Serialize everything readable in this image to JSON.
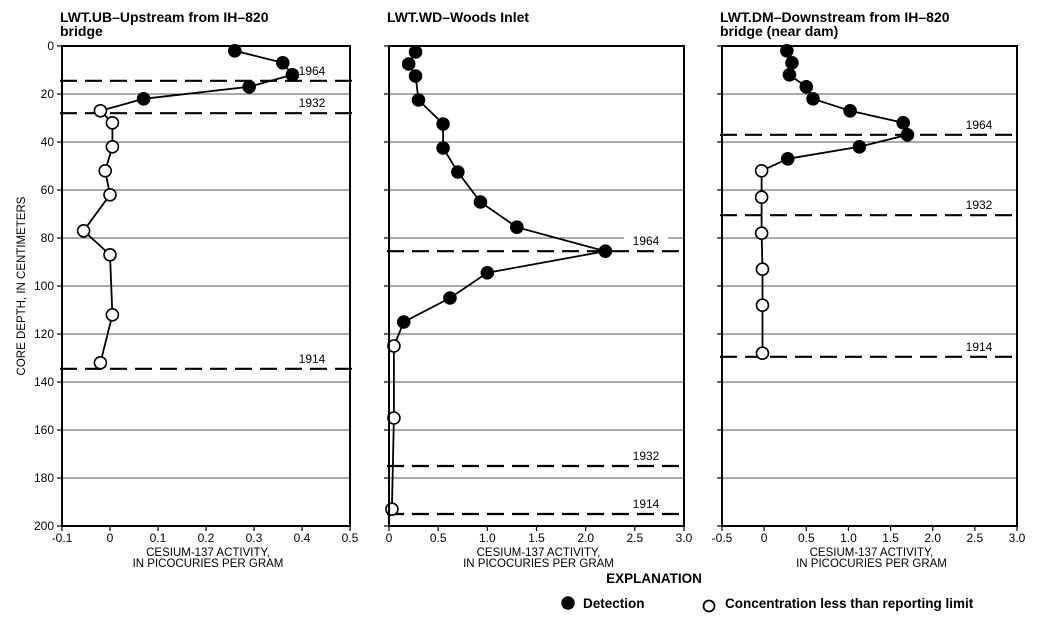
{
  "figure": {
    "ylabel": "CORE DEPTH, IN CENTIMETERS",
    "explanation_title": "EXPLANATION",
    "legend": [
      {
        "marker": "filled",
        "label": "Detection"
      },
      {
        "marker": "open",
        "label": "Concentration less than reporting limit"
      }
    ]
  },
  "chart_data": [
    {
      "type": "line",
      "title_lines": [
        "LWT.UB–Upstream from IH–820",
        "bridge"
      ],
      "xlabel_lines": [
        "CESIUM-137 ACTIVITY,",
        "IN PICOCURIES PER GRAM"
      ],
      "xlim": [
        -0.1,
        0.5
      ],
      "xticks": [
        "-0.1",
        "0",
        "0.1",
        "0.2",
        "0.3",
        "0.4",
        "0.5"
      ],
      "xtick_values": [
        -0.1,
        0,
        0.1,
        0.2,
        0.3,
        0.4,
        0.5
      ],
      "ylim": [
        0,
        200
      ],
      "y_inverted": true,
      "yticks": [
        0,
        20,
        40,
        60,
        80,
        100,
        120,
        140,
        160,
        180,
        200
      ],
      "points": [
        {
          "x": 0.26,
          "y": 2,
          "detected": true
        },
        {
          "x": 0.36,
          "y": 7,
          "detected": true
        },
        {
          "x": 0.38,
          "y": 12,
          "detected": true
        },
        {
          "x": 0.29,
          "y": 17,
          "detected": true
        },
        {
          "x": 0.07,
          "y": 22,
          "detected": true
        },
        {
          "x": -0.02,
          "y": 27,
          "detected": false
        },
        {
          "x": 0.005,
          "y": 32,
          "detected": false
        },
        {
          "x": 0.005,
          "y": 42,
          "detected": false
        },
        {
          "x": -0.01,
          "y": 52,
          "detected": false
        },
        {
          "x": 0.0,
          "y": 62,
          "detected": false
        },
        {
          "x": -0.055,
          "y": 77,
          "detected": false
        },
        {
          "x": 0.0,
          "y": 87,
          "detected": false
        },
        {
          "x": 0.005,
          "y": 112,
          "detected": false
        },
        {
          "x": -0.02,
          "y": 132,
          "detected": false
        }
      ],
      "year_markers": [
        {
          "label": "1964",
          "depth": 14.5
        },
        {
          "label": "1932",
          "depth": 28
        },
        {
          "label": "1914",
          "depth": 134.5
        }
      ]
    },
    {
      "type": "line",
      "title_lines": [
        "LWT.WD–Woods Inlet"
      ],
      "xlabel_lines": [
        "CESIUM-137 ACTIVITY,",
        "IN PICOCURIES PER GRAM"
      ],
      "xlim": [
        0,
        3.0
      ],
      "xticks": [
        "0",
        "0.5",
        "1.0",
        "1.5",
        "2.0",
        "2.5",
        "3.0"
      ],
      "xtick_values": [
        0,
        0.5,
        1.0,
        1.5,
        2.0,
        2.5,
        3.0
      ],
      "ylim": [
        0,
        200
      ],
      "y_inverted": true,
      "yticks": [
        0,
        20,
        40,
        60,
        80,
        100,
        120,
        140,
        160,
        180,
        200
      ],
      "points": [
        {
          "x": 0.27,
          "y": 2.5,
          "detected": true
        },
        {
          "x": 0.2,
          "y": 7.5,
          "detected": true
        },
        {
          "x": 0.27,
          "y": 12.5,
          "detected": true
        },
        {
          "x": 0.3,
          "y": 22.5,
          "detected": true
        },
        {
          "x": 0.55,
          "y": 32.5,
          "detected": true
        },
        {
          "x": 0.55,
          "y": 42.5,
          "detected": true
        },
        {
          "x": 0.7,
          "y": 52.5,
          "detected": true
        },
        {
          "x": 0.93,
          "y": 65,
          "detected": true
        },
        {
          "x": 1.3,
          "y": 75.5,
          "detected": true
        },
        {
          "x": 2.2,
          "y": 85.5,
          "detected": true
        },
        {
          "x": 1.0,
          "y": 94.5,
          "detected": true
        },
        {
          "x": 0.62,
          "y": 105,
          "detected": true
        },
        {
          "x": 0.15,
          "y": 115,
          "detected": true
        },
        {
          "x": 0.05,
          "y": 125,
          "detected": false
        },
        {
          "x": 0.05,
          "y": 155,
          "detected": false
        },
        {
          "x": 0.03,
          "y": 193,
          "detected": false
        }
      ],
      "year_markers": [
        {
          "label": "1964",
          "depth": 85.5
        },
        {
          "label": "1932",
          "depth": 175
        },
        {
          "label": "1914",
          "depth": 195
        }
      ]
    },
    {
      "type": "line",
      "title_lines": [
        "LWT.DM–Downstream from IH–820",
        "bridge (near dam)"
      ],
      "xlabel_lines": [
        "CESIUM-137 ACTIVITY,",
        "IN PICOCURIES PER GRAM"
      ],
      "xlim": [
        -0.5,
        3.0
      ],
      "xticks": [
        "-0.5",
        "0",
        "0.5",
        "1.0",
        "1.5",
        "2.0",
        "2.5",
        "3.0"
      ],
      "xtick_values": [
        -0.5,
        0,
        0.5,
        1.0,
        1.5,
        2.0,
        2.5,
        3.0
      ],
      "ylim": [
        0,
        200
      ],
      "y_inverted": true,
      "yticks": [
        0,
        20,
        40,
        60,
        80,
        100,
        120,
        140,
        160,
        180,
        200
      ],
      "points": [
        {
          "x": 0.27,
          "y": 2,
          "detected": true
        },
        {
          "x": 0.33,
          "y": 7,
          "detected": true
        },
        {
          "x": 0.3,
          "y": 12,
          "detected": true
        },
        {
          "x": 0.5,
          "y": 17,
          "detected": true
        },
        {
          "x": 0.58,
          "y": 22,
          "detected": true
        },
        {
          "x": 1.02,
          "y": 27,
          "detected": true
        },
        {
          "x": 1.65,
          "y": 32,
          "detected": true
        },
        {
          "x": 1.7,
          "y": 37,
          "detected": true
        },
        {
          "x": 1.13,
          "y": 42,
          "detected": true
        },
        {
          "x": 0.28,
          "y": 47,
          "detected": true
        },
        {
          "x": -0.03,
          "y": 52,
          "detected": false
        },
        {
          "x": -0.03,
          "y": 63,
          "detected": false
        },
        {
          "x": -0.03,
          "y": 78,
          "detected": false
        },
        {
          "x": -0.02,
          "y": 93,
          "detected": false
        },
        {
          "x": -0.02,
          "y": 108,
          "detected": false
        },
        {
          "x": -0.02,
          "y": 128,
          "detected": false
        }
      ],
      "year_markers": [
        {
          "label": "1964",
          "depth": 37
        },
        {
          "label": "1932",
          "depth": 70.5
        },
        {
          "label": "1914",
          "depth": 129.5
        }
      ]
    }
  ]
}
